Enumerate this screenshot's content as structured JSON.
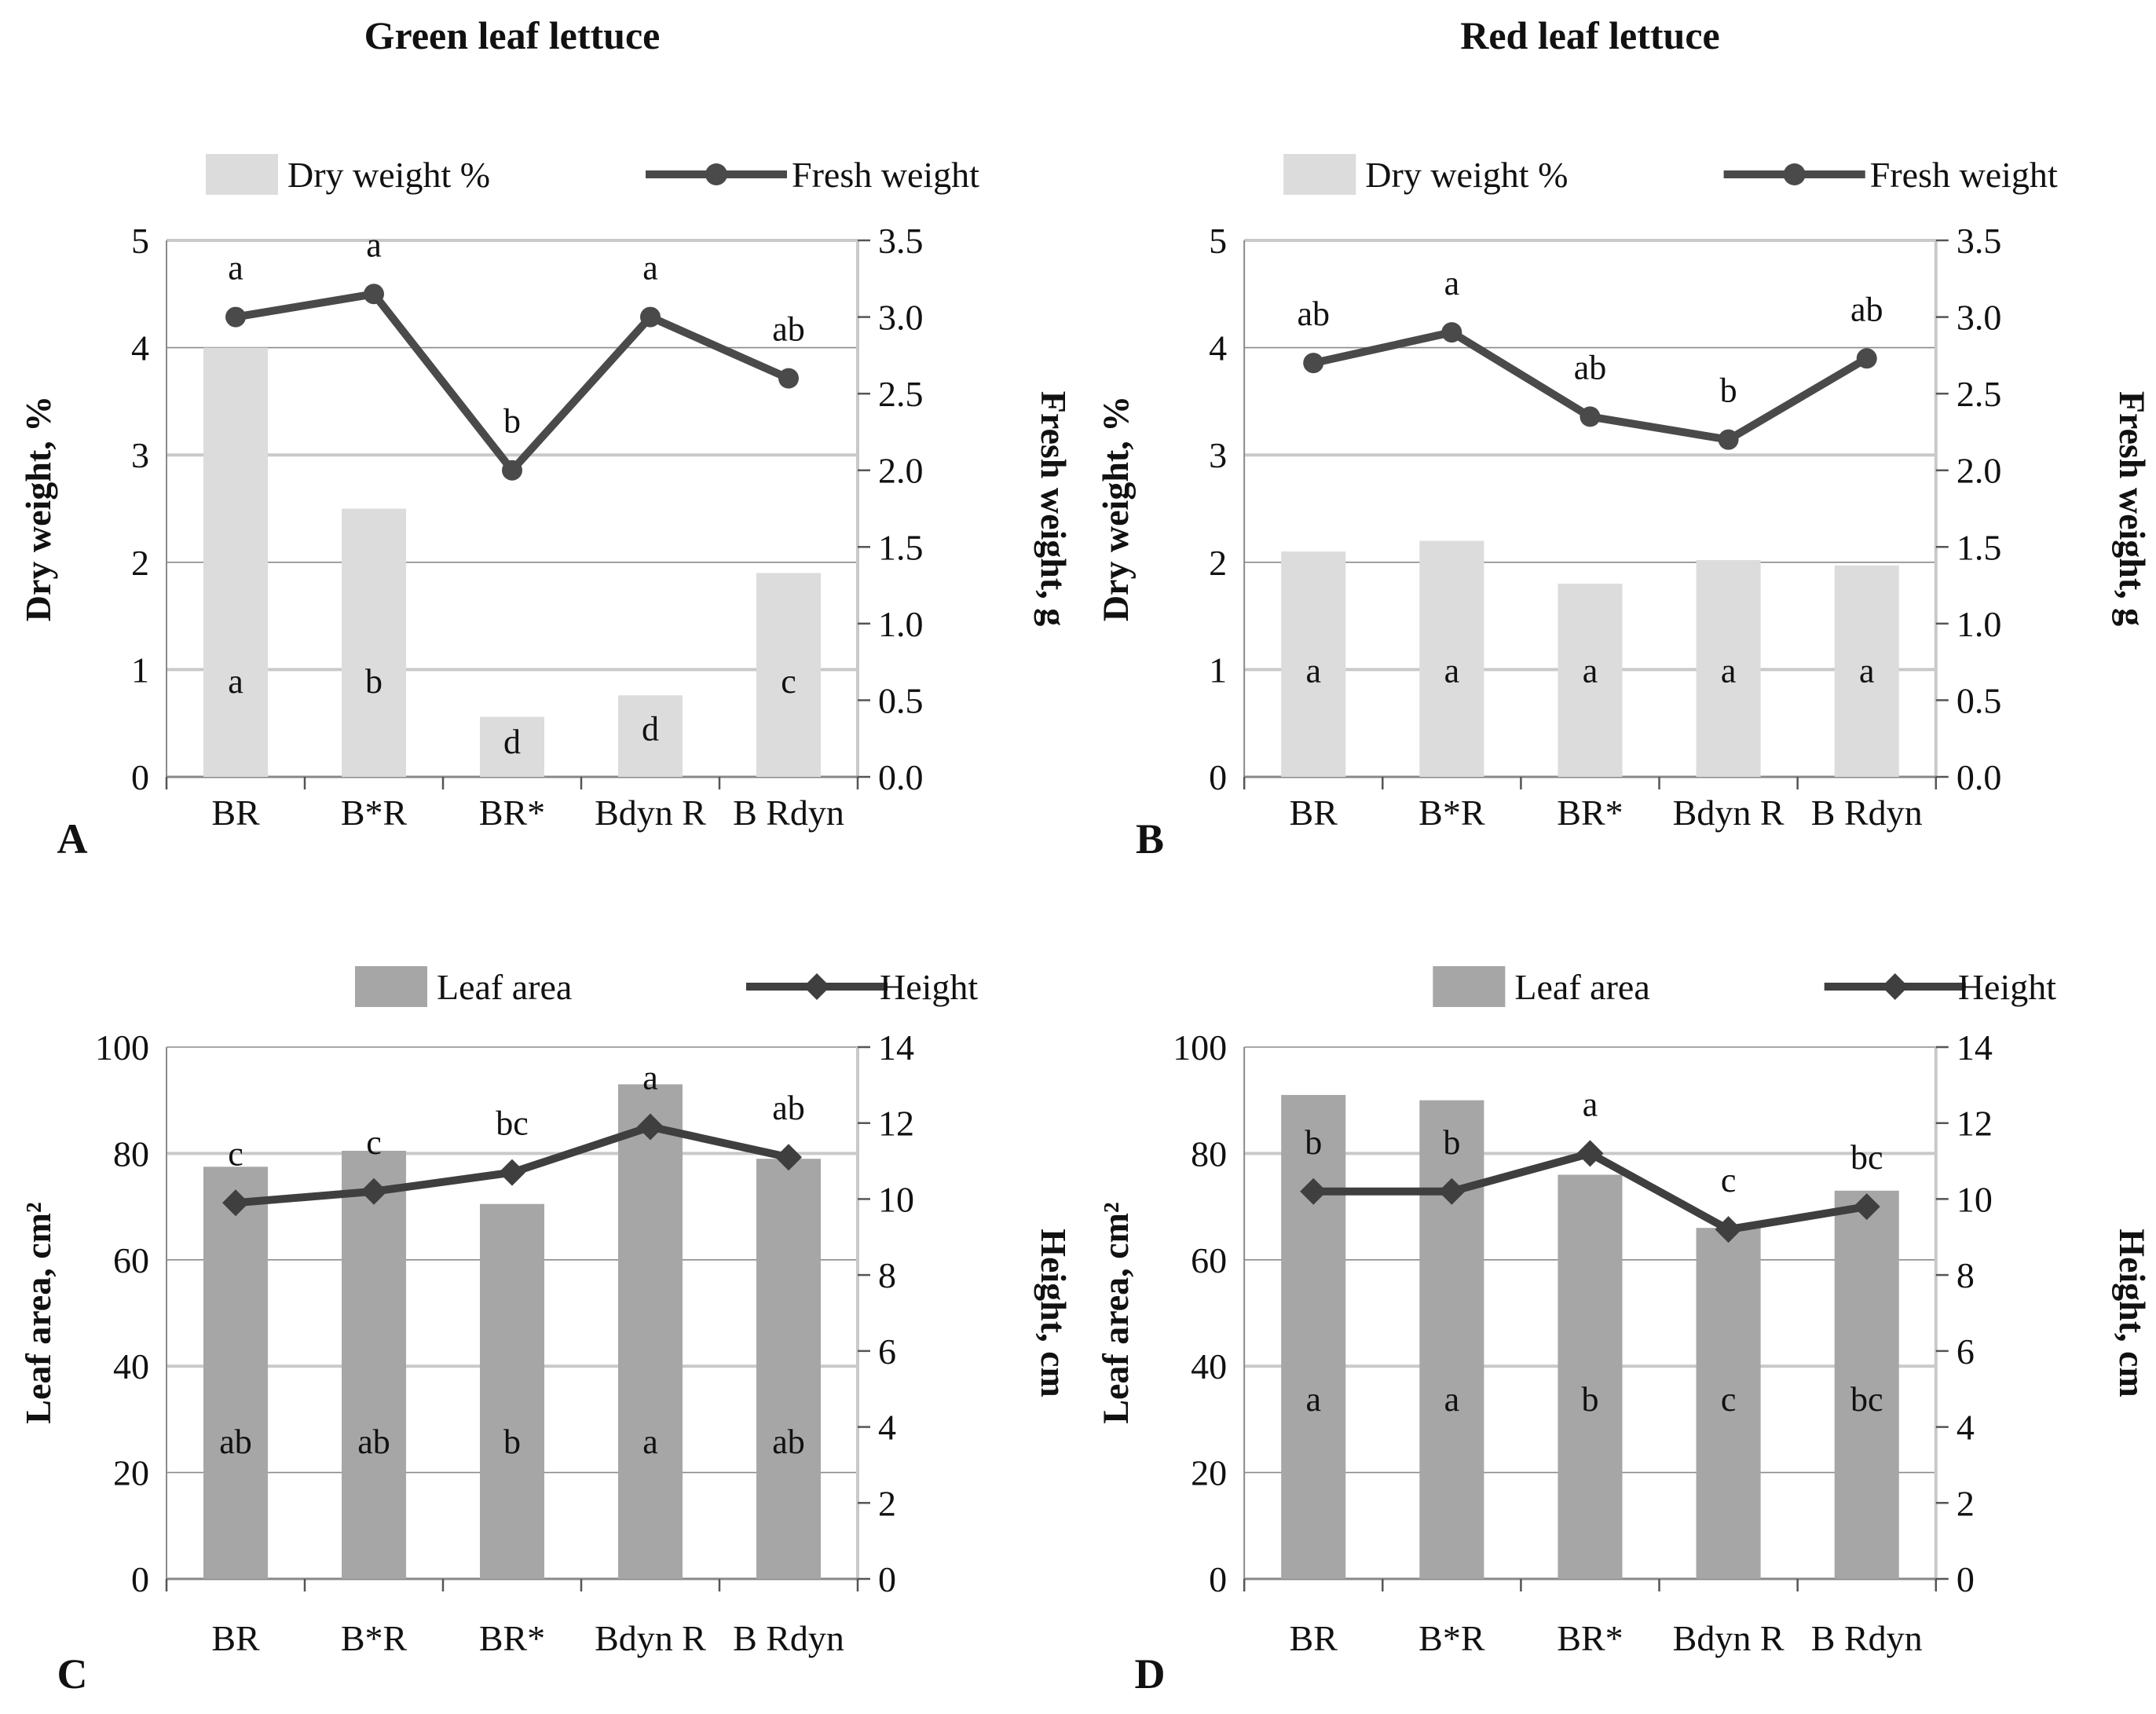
{
  "figure_background": "#ffffff",
  "chart_data": [
    {
      "panel": "A",
      "type": "bar+line",
      "title": "Green leaf lettuce",
      "legend_position": "top-center",
      "grid": true,
      "categories": [
        "BR",
        "B*R",
        "BR*",
        "Bdyn R",
        "B Rdyn"
      ],
      "bar_series": {
        "name": "Dry weight %",
        "axis": "left",
        "values": [
          4.0,
          2.5,
          0.56,
          0.76,
          1.9
        ],
        "sig_letters": [
          "a",
          "b",
          "d",
          "d",
          "c"
        ],
        "color": "#dcdcdc",
        "letter_level": 0.9
      },
      "line_series": {
        "name": "Fresh weight",
        "axis": "right",
        "marker": "circle",
        "values": [
          3.0,
          3.15,
          2.0,
          3.0,
          2.6
        ],
        "sig_letters": [
          "a",
          "a",
          "b",
          "a",
          "ab"
        ],
        "color": "#4a4a4a"
      },
      "left_axis": {
        "title": "Dry weight, %",
        "min": 0,
        "max": 5,
        "ticks": [
          0,
          1,
          2,
          3,
          4,
          5
        ],
        "decimals": 0,
        "light_gridlines": [
          1,
          3,
          5
        ]
      },
      "right_axis": {
        "title": "Fresh weight, g",
        "min": 0,
        "max": 3.5,
        "ticks": [
          0,
          0.5,
          1,
          1.5,
          2,
          2.5,
          3,
          3.5
        ],
        "decimals": 1
      }
    },
    {
      "panel": "B",
      "type": "bar+line",
      "title": "Red leaf lettuce",
      "legend_position": "top-center",
      "grid": true,
      "categories": [
        "BR",
        "B*R",
        "BR*",
        "Bdyn R",
        "B Rdyn"
      ],
      "bar_series": {
        "name": "Dry weight %",
        "axis": "left",
        "values": [
          2.1,
          2.2,
          1.8,
          2.02,
          1.97
        ],
        "sig_letters": [
          "a",
          "a",
          "a",
          "a",
          "a"
        ],
        "color": "#dcdcdc",
        "letter_level": 1.0
      },
      "line_series": {
        "name": "Fresh weight",
        "axis": "right",
        "marker": "circle",
        "values": [
          2.7,
          2.9,
          2.35,
          2.2,
          2.73
        ],
        "sig_letters": [
          "ab",
          "a",
          "ab",
          "b",
          "ab"
        ],
        "color": "#4a4a4a"
      },
      "left_axis": {
        "title": "Dry weight, %",
        "min": 0,
        "max": 5,
        "ticks": [
          0,
          1,
          2,
          3,
          4,
          5
        ],
        "decimals": 0,
        "light_gridlines": [
          1,
          3,
          5
        ]
      },
      "right_axis": {
        "title": "Fresh weight, g",
        "min": 0,
        "max": 3.5,
        "ticks": [
          0,
          0.5,
          1,
          1.5,
          2,
          2.5,
          3,
          3.5
        ],
        "decimals": 1
      }
    },
    {
      "panel": "C",
      "type": "bar+line",
      "title": "",
      "legend_position": "top-center",
      "grid": true,
      "categories": [
        "BR",
        "B*R",
        "BR*",
        "Bdyn R",
        "B Rdyn"
      ],
      "bar_series": {
        "name": "Leaf area",
        "axis": "left",
        "values": [
          77.5,
          80.5,
          70.5,
          93,
          79
        ],
        "sig_letters": [
          "ab",
          "ab",
          "b",
          "a",
          "ab"
        ],
        "color": "#a6a6a6",
        "letter_level": 26
      },
      "line_series": {
        "name": "Height",
        "axis": "right",
        "marker": "diamond",
        "values": [
          9.9,
          10.2,
          10.7,
          11.9,
          11.1
        ],
        "sig_letters": [
          "c",
          "c",
          "bc",
          "a",
          "ab"
        ],
        "color": "#3f3f3f"
      },
      "left_axis": {
        "title": "Leaf area, cm²",
        "min": 0,
        "max": 100,
        "ticks": [
          0,
          20,
          40,
          60,
          80,
          100
        ],
        "decimals": 0,
        "light_gridlines": [
          40,
          80
        ]
      },
      "right_axis": {
        "title": "Height, cm",
        "min": 0,
        "max": 14,
        "ticks": [
          0,
          2,
          4,
          6,
          8,
          10,
          12,
          14
        ],
        "decimals": 0
      }
    },
    {
      "panel": "D",
      "type": "bar+line",
      "title": "",
      "legend_position": "top-center",
      "grid": true,
      "categories": [
        "BR",
        "B*R",
        "BR*",
        "Bdyn R",
        "B Rdyn"
      ],
      "bar_series": {
        "name": "Leaf area",
        "axis": "left",
        "values": [
          91,
          90,
          76,
          66,
          73
        ],
        "sig_letters": [
          "a",
          "a",
          "b",
          "c",
          "bc"
        ],
        "color": "#a6a6a6",
        "letter_level": 34
      },
      "line_series": {
        "name": "Height",
        "axis": "right",
        "marker": "diamond",
        "values": [
          10.2,
          10.2,
          11.2,
          9.2,
          9.8
        ],
        "sig_letters": [
          "b",
          "b",
          "a",
          "c",
          "bc"
        ],
        "color": "#3f3f3f"
      },
      "left_axis": {
        "title": "Leaf area, cm²",
        "min": 0,
        "max": 100,
        "ticks": [
          0,
          20,
          40,
          60,
          80,
          100
        ],
        "decimals": 0,
        "light_gridlines": [
          40,
          80
        ]
      },
      "right_axis": {
        "title": "Height, cm",
        "min": 0,
        "max": 14,
        "ticks": [
          0,
          2,
          4,
          6,
          8,
          10,
          12,
          14
        ],
        "decimals": 0
      }
    }
  ]
}
